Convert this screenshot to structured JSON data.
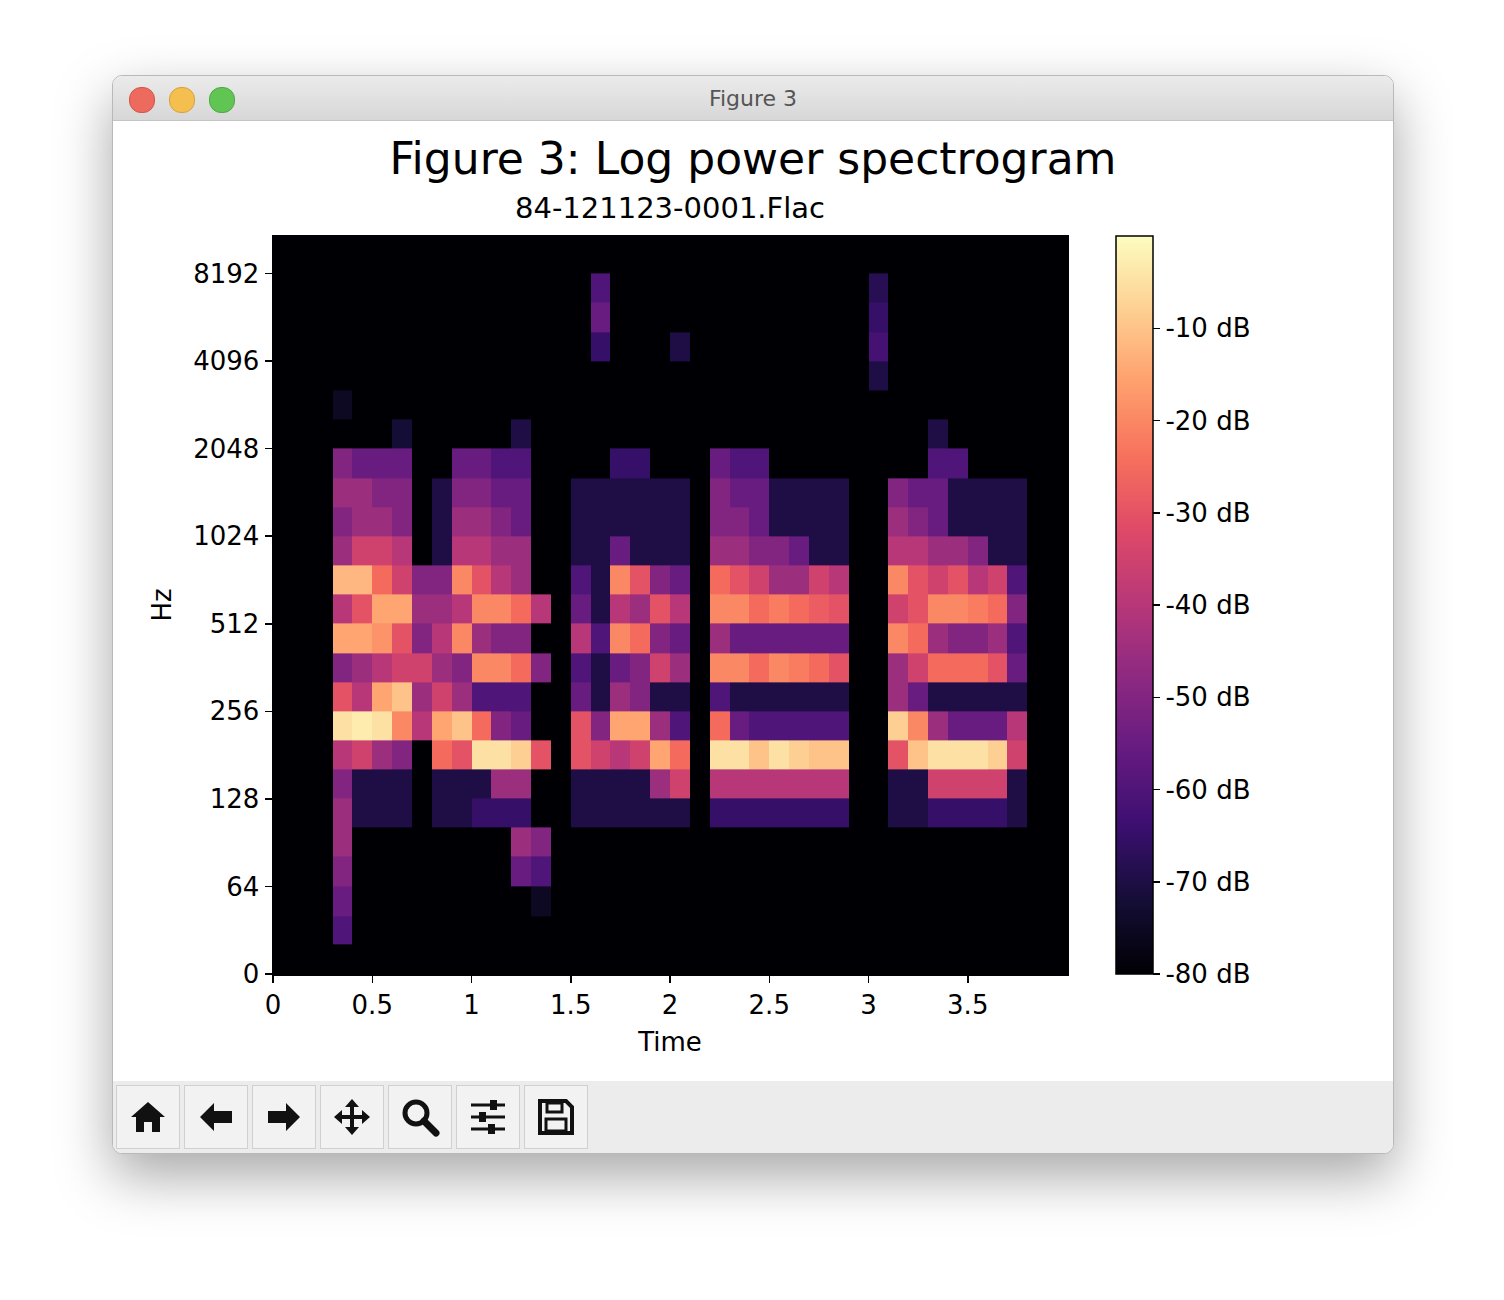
{
  "window": {
    "title": "Figure 3"
  },
  "chart_data": {
    "type": "heatmap",
    "title": "Figure 3: Log power spectrogram",
    "subtitle": "84-121123-0001.Flac",
    "x_label": "Time",
    "y_label": "Hz",
    "log": "y",
    "color": "magma",
    "xlim": [
      0,
      4.0
    ],
    "xticks": [
      0,
      0.5,
      1,
      1.5,
      2,
      2.5,
      3,
      3.5
    ],
    "ylim": [
      0,
      11025
    ],
    "yticks": [
      0,
      64,
      128,
      256,
      512,
      1024,
      2048,
      4096,
      8192
    ],
    "colorbar": {
      "range": [
        -80,
        0
      ],
      "ticks": [
        {
          "value": -10,
          "label": "-10 dB"
        },
        {
          "value": -20,
          "label": "-20 dB"
        },
        {
          "value": -30,
          "label": "-30 dB"
        },
        {
          "value": -40,
          "label": "-40 dB"
        },
        {
          "value": -50,
          "label": "-50 dB"
        },
        {
          "value": -60,
          "label": "-60 dB"
        },
        {
          "value": -70,
          "label": "-70 dB"
        },
        {
          "value": -80,
          "label": "-80 dB"
        }
      ]
    },
    "x": [
      0.05,
      0.15,
      0.25,
      0.35,
      0.45,
      0.55,
      0.65,
      0.75,
      0.85,
      0.95,
      1.05,
      1.15,
      1.25,
      1.35,
      1.45,
      1.55,
      1.65,
      1.75,
      1.85,
      1.95,
      2.05,
      2.15,
      2.25,
      2.35,
      2.45,
      2.55,
      2.65,
      2.75,
      2.85,
      2.95,
      3.05,
      3.15,
      3.25,
      3.35,
      3.45,
      3.55,
      3.65,
      3.75,
      3.85,
      3.95
    ],
    "y": [
      11,
      32,
      53,
      72,
      91,
      114,
      144,
      181,
      228,
      287,
      362,
      456,
      575,
      724,
      912,
      1149,
      1448,
      1824,
      2299,
      2896,
      3649,
      4598,
      5793,
      7298,
      9195
    ],
    "z": [
      [
        -80,
        -80,
        -80,
        -80,
        -80,
        -80,
        -80,
        -80,
        -80,
        -80,
        -80,
        -80,
        -80,
        -80,
        -80,
        -80,
        -80,
        -80,
        -80,
        -80,
        -80,
        -80,
        -80,
        -80,
        -80,
        -80,
        -80,
        -80,
        -80,
        -80,
        -80,
        -80,
        -80,
        -80,
        -80,
        -80,
        -80,
        -80,
        -80,
        -80
      ],
      [
        -80,
        -80,
        -80,
        -60,
        -80,
        -80,
        -80,
        -80,
        -80,
        -80,
        -80,
        -80,
        -80,
        -80,
        -80,
        -80,
        -80,
        -80,
        -80,
        -80,
        -80,
        -80,
        -80,
        -80,
        -80,
        -80,
        -80,
        -80,
        -80,
        -80,
        -80,
        -80,
        -80,
        -80,
        -80,
        -80,
        -80,
        -80,
        -80,
        -80
      ],
      [
        -80,
        -80,
        -80,
        -55,
        -80,
        -80,
        -80,
        -80,
        -80,
        -80,
        -80,
        -80,
        -80,
        -75,
        -80,
        -80,
        -80,
        -80,
        -80,
        -80,
        -80,
        -80,
        -80,
        -80,
        -80,
        -80,
        -80,
        -80,
        -80,
        -80,
        -80,
        -80,
        -80,
        -80,
        -80,
        -80,
        -80,
        -80,
        -80,
        -80
      ],
      [
        -80,
        -80,
        -80,
        -50,
        -80,
        -80,
        -80,
        -80,
        -80,
        -80,
        -80,
        -80,
        -55,
        -60,
        -80,
        -80,
        -80,
        -80,
        -80,
        -80,
        -80,
        -80,
        -80,
        -80,
        -80,
        -80,
        -80,
        -80,
        -80,
        -80,
        -80,
        -80,
        -80,
        -80,
        -80,
        -80,
        -80,
        -80,
        -80,
        -80
      ],
      [
        -80,
        -80,
        -80,
        -45,
        -80,
        -80,
        -80,
        -80,
        -80,
        -80,
        -80,
        -80,
        -45,
        -50,
        -80,
        -80,
        -80,
        -80,
        -80,
        -80,
        -80,
        -80,
        -80,
        -80,
        -80,
        -80,
        -80,
        -80,
        -80,
        -80,
        -80,
        -80,
        -80,
        -80,
        -80,
        -80,
        -80,
        -80,
        -80,
        -80
      ],
      [
        -80,
        -80,
        -80,
        -45,
        -70,
        -70,
        -70,
        -80,
        -70,
        -70,
        -65,
        -65,
        -65,
        -80,
        -80,
        -70,
        -70,
        -70,
        -70,
        -70,
        -70,
        -80,
        -65,
        -65,
        -65,
        -65,
        -65,
        -65,
        -65,
        -80,
        -80,
        -70,
        -70,
        -65,
        -65,
        -65,
        -65,
        -70,
        -80,
        -80
      ],
      [
        -80,
        -80,
        -80,
        -50,
        -70,
        -70,
        -70,
        -80,
        -70,
        -70,
        -70,
        -45,
        -45,
        -80,
        -80,
        -70,
        -70,
        -70,
        -70,
        -45,
        -35,
        -80,
        -40,
        -40,
        -40,
        -40,
        -40,
        -40,
        -40,
        -80,
        -80,
        -70,
        -70,
        -35,
        -35,
        -35,
        -35,
        -70,
        -80,
        -80
      ],
      [
        -80,
        -80,
        -80,
        -40,
        -35,
        -45,
        -50,
        -80,
        -25,
        -30,
        -5,
        -5,
        -8,
        -30,
        -80,
        -30,
        -35,
        -40,
        -35,
        -15,
        -25,
        -80,
        -5,
        -5,
        -10,
        -5,
        -8,
        -10,
        -10,
        -80,
        -80,
        -30,
        -10,
        -5,
        -5,
        -5,
        -8,
        -35,
        -80,
        -80
      ],
      [
        -80,
        -80,
        -80,
        -5,
        -3,
        -5,
        -20,
        -40,
        -15,
        -10,
        -25,
        -50,
        -55,
        -80,
        -80,
        -30,
        -50,
        -15,
        -15,
        -45,
        -60,
        -80,
        -25,
        -55,
        -60,
        -60,
        -60,
        -60,
        -60,
        -80,
        -80,
        -8,
        -20,
        -45,
        -55,
        -55,
        -55,
        -40,
        -80,
        -80
      ],
      [
        -80,
        -80,
        -80,
        -30,
        -40,
        -15,
        -10,
        -45,
        -35,
        -45,
        -60,
        -60,
        -60,
        -80,
        -80,
        -55,
        -70,
        -45,
        -50,
        -70,
        -70,
        -80,
        -60,
        -70,
        -70,
        -70,
        -70,
        -70,
        -70,
        -80,
        -80,
        -45,
        -55,
        -70,
        -70,
        -70,
        -70,
        -70,
        -80,
        -80
      ],
      [
        -80,
        -80,
        -80,
        -50,
        -45,
        -40,
        -35,
        -35,
        -45,
        -50,
        -20,
        -20,
        -25,
        -50,
        -80,
        -60,
        -70,
        -55,
        -50,
        -35,
        -45,
        -80,
        -20,
        -20,
        -25,
        -20,
        -22,
        -25,
        -30,
        -80,
        -80,
        -45,
        -35,
        -25,
        -25,
        -25,
        -30,
        -55,
        -80,
        -80
      ],
      [
        -80,
        -80,
        -80,
        -15,
        -15,
        -18,
        -30,
        -50,
        -40,
        -20,
        -45,
        -50,
        -50,
        -80,
        -80,
        -40,
        -60,
        -20,
        -25,
        -50,
        -55,
        -80,
        -45,
        -55,
        -55,
        -55,
        -55,
        -55,
        -55,
        -80,
        -80,
        -20,
        -25,
        -45,
        -50,
        -50,
        -45,
        -60,
        -80,
        -80
      ],
      [
        -80,
        -80,
        -80,
        -40,
        -30,
        -15,
        -15,
        -45,
        -45,
        -40,
        -20,
        -20,
        -25,
        -40,
        -80,
        -55,
        -70,
        -40,
        -45,
        -30,
        -40,
        -80,
        -20,
        -20,
        -25,
        -22,
        -25,
        -28,
        -30,
        -80,
        -80,
        -35,
        -30,
        -20,
        -20,
        -22,
        -25,
        -50,
        -80,
        -80
      ],
      [
        -80,
        -80,
        -80,
        -12,
        -12,
        -25,
        -35,
        -50,
        -50,
        -20,
        -30,
        -40,
        -45,
        -80,
        -80,
        -60,
        -70,
        -20,
        -30,
        -50,
        -55,
        -80,
        -25,
        -30,
        -35,
        -45,
        -45,
        -35,
        -40,
        -80,
        -80,
        -20,
        -30,
        -35,
        -30,
        -40,
        -35,
        -60,
        -80,
        -80
      ],
      [
        -80,
        -80,
        -80,
        -45,
        -35,
        -35,
        -40,
        -80,
        -70,
        -40,
        -40,
        -45,
        -45,
        -80,
        -80,
        -70,
        -70,
        -55,
        -70,
        -70,
        -70,
        -80,
        -45,
        -45,
        -50,
        -50,
        -55,
        -70,
        -70,
        -80,
        -80,
        -40,
        -40,
        -45,
        -45,
        -50,
        -70,
        -70,
        -80,
        -80
      ],
      [
        -80,
        -80,
        -80,
        -50,
        -45,
        -45,
        -50,
        -80,
        -70,
        -45,
        -45,
        -50,
        -55,
        -80,
        -80,
        -70,
        -70,
        -70,
        -70,
        -70,
        -70,
        -80,
        -50,
        -50,
        -55,
        -70,
        -70,
        -70,
        -70,
        -80,
        -80,
        -45,
        -50,
        -55,
        -70,
        -70,
        -70,
        -70,
        -80,
        -80
      ],
      [
        -80,
        -80,
        -80,
        -45,
        -45,
        -50,
        -50,
        -80,
        -70,
        -50,
        -50,
        -55,
        -55,
        -80,
        -80,
        -70,
        -70,
        -70,
        -70,
        -70,
        -70,
        -80,
        -50,
        -55,
        -55,
        -70,
        -70,
        -70,
        -70,
        -80,
        -80,
        -50,
        -55,
        -55,
        -70,
        -70,
        -70,
        -70,
        -80,
        -80
      ],
      [
        -80,
        -80,
        -80,
        -50,
        -55,
        -55,
        -55,
        -80,
        -80,
        -55,
        -55,
        -60,
        -60,
        -80,
        -80,
        -80,
        -80,
        -65,
        -65,
        -80,
        -80,
        -80,
        -55,
        -60,
        -60,
        -80,
        -80,
        -80,
        -80,
        -80,
        -80,
        -80,
        -80,
        -60,
        -60,
        -80,
        -80,
        -80,
        -80,
        -80
      ],
      [
        -80,
        -80,
        -80,
        -80,
        -80,
        -80,
        -72,
        -80,
        -80,
        -80,
        -80,
        -80,
        -70,
        -80,
        -80,
        -80,
        -80,
        -80,
        -80,
        -80,
        -80,
        -80,
        -80,
        -80,
        -80,
        -80,
        -80,
        -80,
        -80,
        -80,
        -80,
        -80,
        -80,
        -70,
        -80,
        -80,
        -80,
        -80,
        -80,
        -80
      ],
      [
        -80,
        -80,
        -80,
        -75,
        -80,
        -80,
        -80,
        -80,
        -80,
        -80,
        -80,
        -80,
        -80,
        -80,
        -80,
        -80,
        -80,
        -80,
        -80,
        -80,
        -80,
        -80,
        -80,
        -80,
        -80,
        -80,
        -80,
        -80,
        -80,
        -80,
        -80,
        -80,
        -80,
        -80,
        -80,
        -80,
        -80,
        -80,
        -80,
        -80
      ],
      [
        -80,
        -80,
        -80,
        -80,
        -80,
        -80,
        -80,
        -80,
        -80,
        -80,
        -80,
        -80,
        -80,
        -80,
        -80,
        -80,
        -80,
        -80,
        -80,
        -80,
        -80,
        -80,
        -80,
        -80,
        -80,
        -80,
        -80,
        -80,
        -80,
        -80,
        -70,
        -80,
        -80,
        -80,
        -80,
        -80,
        -80,
        -80,
        -80,
        -80
      ],
      [
        -80,
        -80,
        -80,
        -80,
        -80,
        -80,
        -80,
        -80,
        -80,
        -80,
        -80,
        -80,
        -80,
        -80,
        -80,
        -80,
        -65,
        -80,
        -80,
        -80,
        -70,
        -80,
        -80,
        -80,
        -80,
        -80,
        -80,
        -80,
        -80,
        -80,
        -62,
        -80,
        -80,
        -80,
        -80,
        -80,
        -80,
        -80,
        -80,
        -80
      ],
      [
        -80,
        -80,
        -80,
        -80,
        -80,
        -80,
        -80,
        -80,
        -80,
        -80,
        -80,
        -80,
        -80,
        -80,
        -80,
        -80,
        -55,
        -80,
        -80,
        -80,
        -80,
        -80,
        -80,
        -80,
        -80,
        -80,
        -80,
        -80,
        -80,
        -80,
        -65,
        -80,
        -80,
        -80,
        -80,
        -80,
        -80,
        -80,
        -80,
        -80
      ],
      [
        -80,
        -80,
        -80,
        -80,
        -80,
        -80,
        -80,
        -80,
        -80,
        -80,
        -80,
        -80,
        -80,
        -80,
        -80,
        -80,
        -60,
        -80,
        -80,
        -80,
        -80,
        -80,
        -80,
        -80,
        -80,
        -80,
        -80,
        -80,
        -80,
        -80,
        -68,
        -80,
        -80,
        -80,
        -80,
        -80,
        -80,
        -80,
        -80,
        -80
      ],
      [
        -80,
        -80,
        -80,
        -80,
        -80,
        -80,
        -80,
        -80,
        -80,
        -80,
        -80,
        -80,
        -80,
        -80,
        -80,
        -80,
        -80,
        -80,
        -80,
        -80,
        -80,
        -80,
        -80,
        -80,
        -80,
        -80,
        -80,
        -80,
        -80,
        -80,
        -80,
        -80,
        -80,
        -80,
        -80,
        -80,
        -80,
        -80,
        -80,
        -80
      ]
    ]
  }
}
